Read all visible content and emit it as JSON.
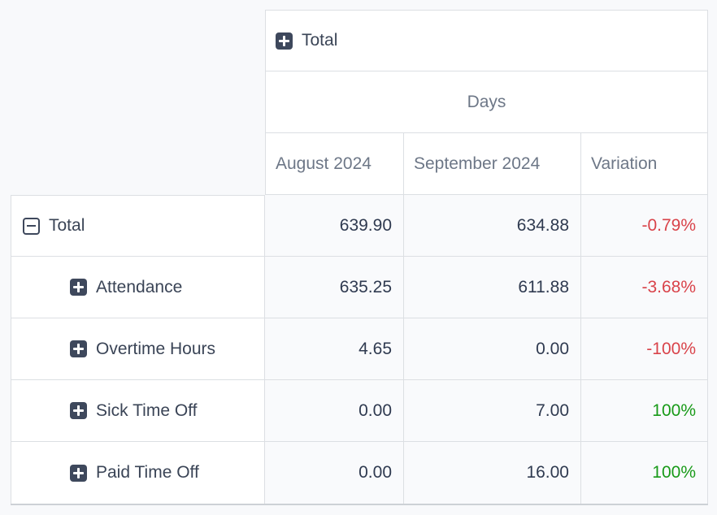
{
  "pivot": {
    "top_header": {
      "label": "Total",
      "icon": "plus-icon"
    },
    "measure_header": {
      "label": "Days"
    },
    "columns": [
      {
        "label": "August 2024"
      },
      {
        "label": "September 2024"
      },
      {
        "label": "Variation"
      }
    ],
    "rows": [
      {
        "label": "Total",
        "icon": "minus-icon",
        "level": 0,
        "values": [
          "639.90",
          "634.88"
        ],
        "variation": "-0.79%",
        "variation_style": "color:#d9434a"
      },
      {
        "label": "Attendance",
        "icon": "plus-icon",
        "level": 1,
        "values": [
          "635.25",
          "611.88"
        ],
        "variation": "-3.68%",
        "variation_style": "color:#d9434a"
      },
      {
        "label": "Overtime Hours",
        "icon": "plus-icon",
        "level": 1,
        "values": [
          "4.65",
          "0.00"
        ],
        "variation": "-100%",
        "variation_style": "color:#d9434a"
      },
      {
        "label": "Sick Time Off",
        "icon": "plus-icon",
        "level": 1,
        "values": [
          "0.00",
          "7.00"
        ],
        "variation": "100%",
        "variation_style": "color:#189a18"
      },
      {
        "label": "Paid Time Off",
        "icon": "plus-icon",
        "level": 1,
        "values": [
          "0.00",
          "16.00"
        ],
        "variation": "100%",
        "variation_style": "color:#189a18"
      }
    ],
    "colors": {
      "negative": "#d9434a",
      "positive": "#189a18",
      "icon_fill": "#3e485c",
      "border": "#dcdfe3",
      "header_text_muted": "#6d7787",
      "text_dark": "#3a4456",
      "page_background": "#f8f9fb"
    }
  }
}
